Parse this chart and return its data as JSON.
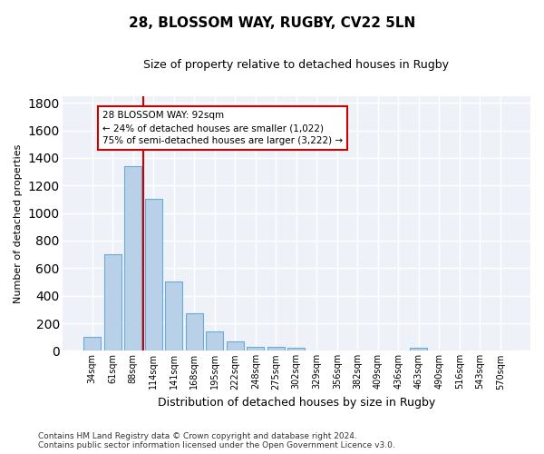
{
  "title_line1": "28, BLOSSOM WAY, RUGBY, CV22 5LN",
  "title_line2": "Size of property relative to detached houses in Rugby",
  "xlabel": "Distribution of detached houses by size in Rugby",
  "ylabel": "Number of detached properties",
  "categories": [
    "34sqm",
    "61sqm",
    "88sqm",
    "114sqm",
    "141sqm",
    "168sqm",
    "195sqm",
    "222sqm",
    "248sqm",
    "275sqm",
    "302sqm",
    "329sqm",
    "356sqm",
    "382sqm",
    "409sqm",
    "436sqm",
    "463sqm",
    "490sqm",
    "516sqm",
    "543sqm",
    "570sqm"
  ],
  "values": [
    100,
    700,
    1340,
    1100,
    500,
    270,
    140,
    70,
    30,
    30,
    25,
    0,
    0,
    0,
    0,
    0,
    20,
    0,
    0,
    0,
    0
  ],
  "bar_color": "#b8d0e8",
  "bar_edge_color": "#6aaad4",
  "vline_color": "#cc0000",
  "vline_x_index": 2.5,
  "annotation_text": "28 BLOSSOM WAY: 92sqm\n← 24% of detached houses are smaller (1,022)\n75% of semi-detached houses are larger (3,222) →",
  "annotation_box_facecolor": "#ffffff",
  "annotation_box_edgecolor": "#cc0000",
  "ylim": [
    0,
    1850
  ],
  "yticks": [
    0,
    200,
    400,
    600,
    800,
    1000,
    1200,
    1400,
    1600,
    1800
  ],
  "background_color": "#eef2f8",
  "grid_color": "#ffffff",
  "fig_facecolor": "#ffffff",
  "footnote": "Contains HM Land Registry data © Crown copyright and database right 2024.\nContains public sector information licensed under the Open Government Licence v3.0.",
  "title1_fontsize": 11,
  "title2_fontsize": 9,
  "ylabel_fontsize": 8,
  "xlabel_fontsize": 9,
  "tick_fontsize": 7,
  "annot_fontsize": 7.5,
  "footnote_fontsize": 6.5
}
